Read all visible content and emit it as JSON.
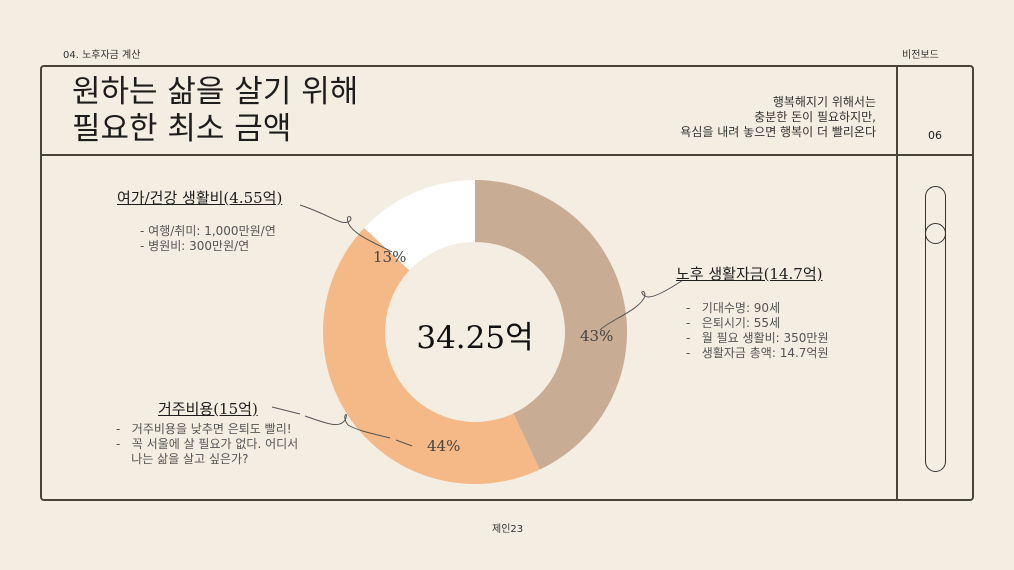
{
  "header": {
    "section": "04. 노후자금 계산",
    "brand": "비전보드",
    "page_number": "06"
  },
  "title": [
    "원하는 삶을 살기 위해",
    "필요한 최소 금액"
  ],
  "quote": [
    "행복해지기 위해서는",
    "충분한 돈이 필요하지만,",
    "욕심을 내려 놓으면 행복이 더 빨리온다"
  ],
  "footer": "제인23",
  "colors": {
    "retirement": "#c8ac93",
    "housing": "#f5b887",
    "leisure": "#ffffff",
    "background": "#f4ede1"
  },
  "chart_data": {
    "type": "pie",
    "donut": true,
    "center_label": "34.25억",
    "slices": [
      {
        "name": "노후 생활자금(14.7억)",
        "value": 43,
        "label": "43%",
        "color": "#c8ac93",
        "notes": [
          "기대수명: 90세",
          "은퇴시기: 55세",
          "월 필요 생활비: 350만원",
          "생활자금 총액: 14.7억원"
        ]
      },
      {
        "name": "거주비용(15억)",
        "value": 44,
        "label": "44%",
        "color": "#f5b887",
        "notes": [
          "거주비용을 낮추면 은퇴도 빨리!",
          "꼭 서울에 살 필요가 없다. 어디서",
          "나는 삶을 살고 싶은가?"
        ]
      },
      {
        "name": "여가/건강 생활비(4.55억)",
        "value": 13,
        "label": "13%",
        "color": "#ffffff",
        "notes": [
          "여행/취미: 1,000만원/연",
          "병원비: 300만원/연"
        ]
      }
    ]
  }
}
